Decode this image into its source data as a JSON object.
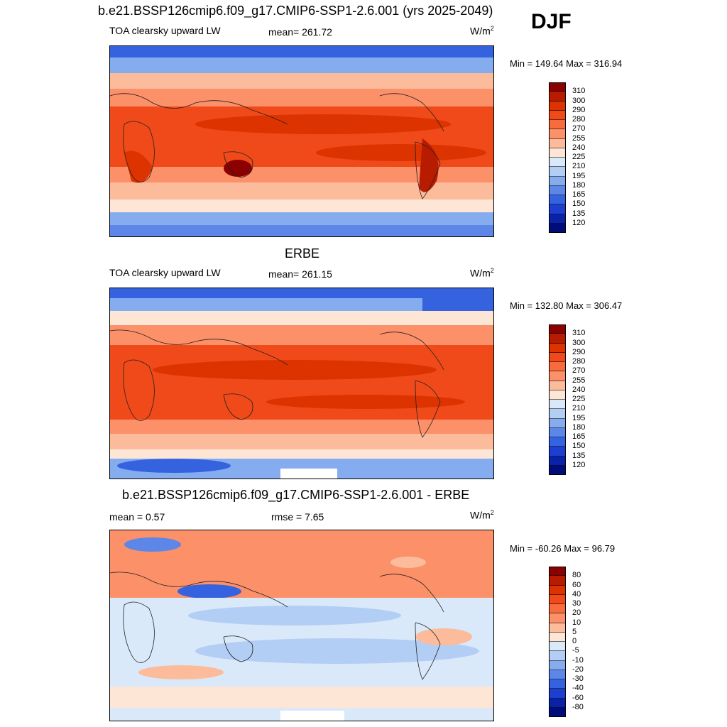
{
  "season": "DJF",
  "panels": [
    {
      "title": "b.e21.BSSP126cmip6.f09_g17.CMIP6-SSP1-2.6.001 (yrs 2025-2049)",
      "left_label": "TOA clearsky upward LW",
      "center_label": "mean= 261.72",
      "units_base": "W/m",
      "units_exp": "2",
      "minmax": "Min = 149.64 Max = 316.94"
    },
    {
      "title": "ERBE",
      "left_label": "TOA clearsky upward LW",
      "center_label": "mean= 261.15",
      "units_base": "W/m",
      "units_exp": "2",
      "minmax": "Min = 132.80 Max = 306.47"
    },
    {
      "title": "b.e21.BSSP126cmip6.f09_g17.CMIP6-SSP1-2.6.001 - ERBE",
      "left_label": "mean =   0.57",
      "center_label": "rmse =   7.65",
      "units_base": "W/m",
      "units_exp": "2",
      "minmax": "Min = -60.26 Max =  96.79"
    }
  ],
  "colorbars": {
    "abs_levels": [
      "310",
      "300",
      "290",
      "280",
      "270",
      "255",
      "240",
      "225",
      "210",
      "195",
      "180",
      "165",
      "150",
      "135",
      "120"
    ],
    "diff_levels": [
      "80",
      "60",
      "40",
      "30",
      "20",
      "10",
      "5",
      "0",
      "-5",
      "-10",
      "-20",
      "-30",
      "-40",
      "-60",
      "-80"
    ],
    "colors_top_to_bottom": [
      "#8b0000",
      "#b81c00",
      "#dc3300",
      "#f04a1a",
      "#f76b3c",
      "#fb9069",
      "#fcbc9c",
      "#fde6d6",
      "#dae9fa",
      "#b3cef5",
      "#86acf0",
      "#5c87e8",
      "#3563e0",
      "#1c3fd0",
      "#0a22a8",
      "#000c7a"
    ]
  },
  "chart_data": [
    {
      "type": "heatmap",
      "title": "b.e21.BSSP126cmip6.f09_g17.CMIP6-SSP1-2.6.001 (yrs 2025-2049)",
      "variable": "TOA clearsky upward LW",
      "units": "W/m2",
      "mean": 261.72,
      "min": 149.64,
      "max": 316.94,
      "contour_levels": [
        120,
        135,
        150,
        165,
        180,
        195,
        210,
        225,
        240,
        255,
        270,
        280,
        290,
        300,
        310
      ]
    },
    {
      "type": "heatmap",
      "title": "ERBE",
      "variable": "TOA clearsky upward LW",
      "units": "W/m2",
      "mean": 261.15,
      "min": 132.8,
      "max": 306.47,
      "contour_levels": [
        120,
        135,
        150,
        165,
        180,
        195,
        210,
        225,
        240,
        255,
        270,
        280,
        290,
        300,
        310
      ]
    },
    {
      "type": "heatmap",
      "title": "b.e21.BSSP126cmip6.f09_g17.CMIP6-SSP1-2.6.001 - ERBE",
      "units": "W/m2",
      "mean": 0.57,
      "rmse": 7.65,
      "min": -60.26,
      "max": 96.79,
      "contour_levels": [
        -80,
        -60,
        -40,
        -30,
        -20,
        -10,
        -5,
        0,
        5,
        10,
        20,
        30,
        40,
        60,
        80
      ]
    }
  ]
}
